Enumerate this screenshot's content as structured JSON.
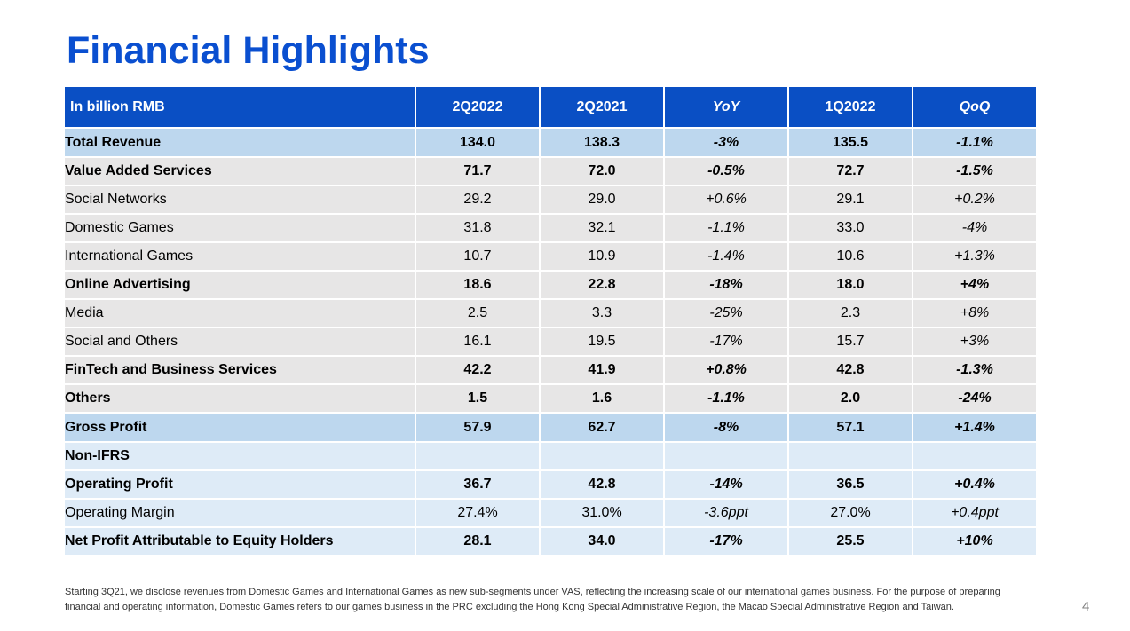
{
  "title": "Financial Highlights",
  "table": {
    "headers": [
      "In billion RMB",
      "2Q2022",
      "2Q2021",
      "YoY",
      "1Q2022",
      "QoQ"
    ],
    "rows": [
      {
        "label": "Total Revenue",
        "values": [
          "134.0",
          "138.3",
          "-3%",
          "135.5",
          "-1.1%"
        ]
      },
      {
        "label": "Value Added Services",
        "values": [
          "71.7",
          "72.0",
          "-0.5%",
          "72.7",
          "-1.5%"
        ]
      },
      {
        "label": "Social Networks",
        "values": [
          "29.2",
          "29.0",
          "+0.6%",
          "29.1",
          "+0.2%"
        ]
      },
      {
        "label": "Domestic Games",
        "values": [
          "31.8",
          "32.1",
          "-1.1%",
          "33.0",
          "-4%"
        ]
      },
      {
        "label": "International Games",
        "values": [
          "10.7",
          "10.9",
          "-1.4%",
          "10.6",
          "+1.3%"
        ]
      },
      {
        "label": "Online Advertising",
        "values": [
          "18.6",
          "22.8",
          "-18%",
          "18.0",
          "+4%"
        ]
      },
      {
        "label": "Media",
        "values": [
          "2.5",
          "3.3",
          "-25%",
          "2.3",
          "+8%"
        ]
      },
      {
        "label": "Social and Others",
        "values": [
          "16.1",
          "19.5",
          "-17%",
          "15.7",
          "+3%"
        ]
      },
      {
        "label": "FinTech and Business Services",
        "values": [
          "42.2",
          "41.9",
          "+0.8%",
          "42.8",
          "-1.3%"
        ]
      },
      {
        "label": "Others",
        "values": [
          "1.5",
          "1.6",
          "-1.1%",
          "2.0",
          "-24%"
        ]
      },
      {
        "label": "Gross Profit",
        "values": [
          "57.9",
          "62.7",
          "-8%",
          "57.1",
          "+1.4%"
        ]
      },
      {
        "label": "Non-IFRS",
        "values": [
          "",
          "",
          "",
          "",
          ""
        ]
      },
      {
        "label": "Operating Profit",
        "values": [
          "36.7",
          "42.8",
          "-14%",
          "36.5",
          "+0.4%"
        ]
      },
      {
        "label": "Operating Margin",
        "values": [
          "27.4%",
          "31.0%",
          "-3.6ppt",
          "27.0%",
          "+0.4ppt"
        ]
      },
      {
        "label": "Net Profit Attributable to Equity Holders",
        "values": [
          "28.1",
          "34.0",
          "-17%",
          "25.5",
          "+10%"
        ]
      }
    ]
  },
  "footnote": {
    "line1": "Starting 3Q21, we disclose revenues from Domestic Games and International Games as new sub-segments under VAS, reflecting the increasing scale of our international games business. For the purpose of preparing",
    "line2": "financial and operating information, Domestic Games refers to our games business in the PRC excluding the Hong Kong Special Administrative Region, the Macao Special Administrative Region and Taiwan."
  },
  "page_number": "4",
  "colors": {
    "title": "#0a4fd0",
    "header_bg": "#0a4fc4",
    "highlight_row": "#bdd7ee",
    "grey_row": "#e7e6e6",
    "light_blue_row": "#deebf7"
  }
}
